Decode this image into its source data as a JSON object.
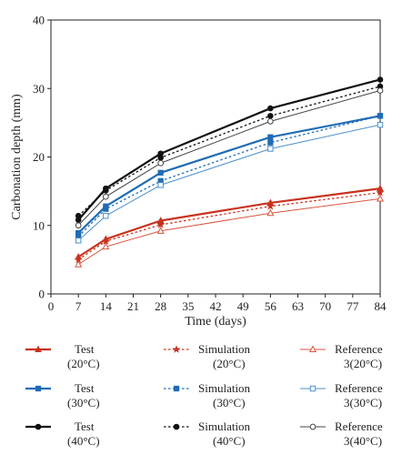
{
  "chart_data": {
    "type": "line",
    "xlabel": "Time (days)",
    "ylabel": "Carbonation depth (mm)",
    "xlim": [
      0,
      84
    ],
    "ylim": [
      0,
      40
    ],
    "xticks": [
      "0",
      "7",
      "14",
      "21",
      "28",
      "35",
      "42",
      "49",
      "56",
      "63",
      "70",
      "77",
      "84"
    ],
    "yticks": [
      "0",
      "10",
      "20",
      "30",
      "40"
    ],
    "grid": false,
    "legend_position": "bottom",
    "x": [
      7,
      14,
      28,
      56,
      84
    ],
    "series": [
      {
        "legend": [
          "Test",
          "(20°C)"
        ],
        "color": "#c8321e",
        "style": "solid",
        "marker": "triangle-filled",
        "values": [
          5.4,
          8.0,
          10.7,
          13.3,
          15.4
        ]
      },
      {
        "legend": [
          "Simulation",
          "(20°C)"
        ],
        "color": "#c8321e",
        "style": "dashed",
        "marker": "star",
        "values": [
          5.0,
          7.7,
          10.1,
          12.8,
          14.8
        ]
      },
      {
        "legend": [
          "Reference",
          "3(20°C)"
        ],
        "color": "#d9553f",
        "style": "thin",
        "marker": "triangle-open",
        "values": [
          4.3,
          6.9,
          9.2,
          11.8,
          13.9
        ]
      },
      {
        "legend": [
          "Test",
          "(30°C)"
        ],
        "color": "#1f6cb5",
        "style": "solid",
        "marker": "square-filled",
        "values": [
          8.9,
          12.8,
          17.7,
          22.9,
          26.0
        ]
      },
      {
        "legend": [
          "Simulation",
          "(30°C)"
        ],
        "color": "#1f6cb5",
        "style": "dashed",
        "marker": "square-filled",
        "values": [
          8.4,
          12.4,
          16.5,
          22.1,
          26.0
        ]
      },
      {
        "legend": [
          "Reference",
          "3(30°C)"
        ],
        "color": "#4a90cc",
        "style": "thin",
        "marker": "square-open",
        "values": [
          7.8,
          11.4,
          15.9,
          21.2,
          24.7
        ]
      },
      {
        "legend": [
          "Test",
          "(40°C)"
        ],
        "color": "#111111",
        "style": "solid",
        "marker": "circle-filled",
        "values": [
          10.8,
          15.4,
          20.5,
          27.1,
          31.3
        ]
      },
      {
        "legend": [
          "Simulation",
          "(40°C)"
        ],
        "color": "#111111",
        "style": "dashed",
        "marker": "circle-filled",
        "values": [
          11.4,
          15.1,
          19.9,
          26.0,
          30.3
        ]
      },
      {
        "legend": [
          "Reference",
          "3(40°C)"
        ],
        "color": "#444444",
        "style": "thin",
        "marker": "circle-open",
        "values": [
          10.0,
          14.2,
          19.1,
          25.2,
          29.7
        ]
      }
    ]
  }
}
